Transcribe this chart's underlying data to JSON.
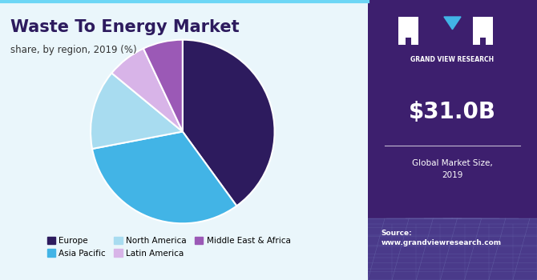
{
  "title": "Waste To Energy Market",
  "subtitle": "share, by region, 2019 (%)",
  "slices": [
    {
      "label": "Europe",
      "value": 40,
      "color": "#2d1b5e"
    },
    {
      "label": "Asia Pacific",
      "value": 32,
      "color": "#42b4e6"
    },
    {
      "label": "North America",
      "value": 14,
      "color": "#a8dcf0"
    },
    {
      "label": "Latin America",
      "value": 7,
      "color": "#d8b4e8"
    },
    {
      "label": "Middle East & Africa",
      "value": 7,
      "color": "#9b59b6"
    }
  ],
  "bg_color": "#eaf6fb",
  "sidebar_bg": "#3d1f6e",
  "sidebar_bottom_bg": "#4a3080",
  "market_size_value": "$31.0B",
  "market_size_label": "Global Market Size,\n2019",
  "source_text": "Source:\nwww.grandviewresearch.com",
  "title_color": "#2d1b5e",
  "subtitle_color": "#333333",
  "border_color": "#6dd6f5",
  "legend_cols": 3
}
